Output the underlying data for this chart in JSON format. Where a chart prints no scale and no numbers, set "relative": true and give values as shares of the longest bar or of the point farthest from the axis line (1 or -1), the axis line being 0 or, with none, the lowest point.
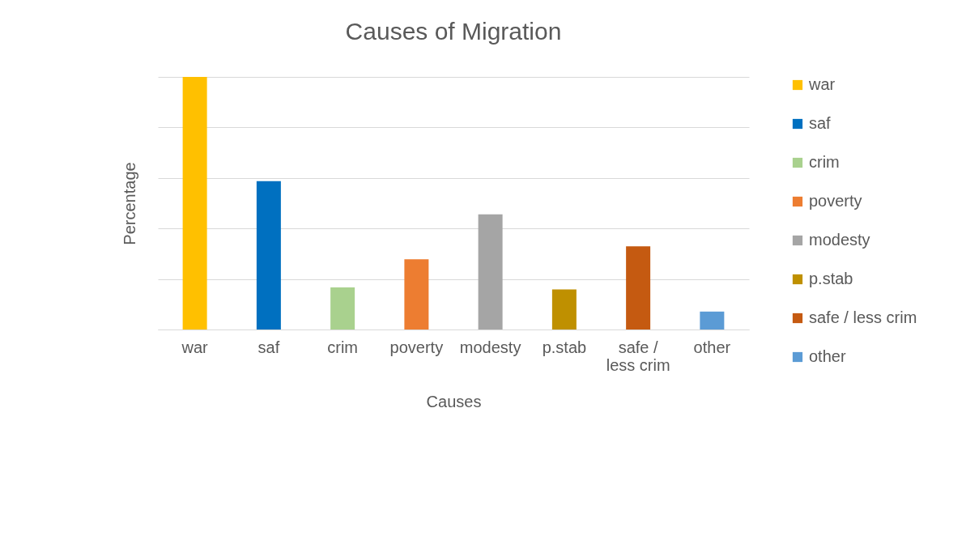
{
  "chart_data": {
    "type": "bar",
    "title": "Causes of Migration",
    "xlabel": "Causes",
    "ylabel": "Percentage",
    "relative": true,
    "grid": "y",
    "legend": "right",
    "categories": [
      "war",
      "saf",
      "crim",
      "poverty",
      "modesty",
      "p.stab",
      "safe / less crim",
      "other"
    ],
    "series": [
      {
        "name": "war",
        "color": "#ffc000",
        "values": [
          1,
          null,
          null,
          null,
          null,
          null,
          null,
          null
        ]
      },
      {
        "name": "saf",
        "color": "#0070c0",
        "values": [
          null,
          0.587,
          null,
          null,
          null,
          null,
          null,
          null
        ]
      },
      {
        "name": "crim",
        "color": "#a9d18e",
        "values": [
          null,
          null,
          0.167,
          null,
          null,
          null,
          null,
          null
        ]
      },
      {
        "name": "poverty",
        "color": "#ed7d31",
        "values": [
          null,
          null,
          null,
          0.278,
          null,
          null,
          null,
          null
        ]
      },
      {
        "name": "modesty",
        "color": "#a5a5a5",
        "values": [
          null,
          null,
          null,
          null,
          0.456,
          null,
          null,
          null
        ]
      },
      {
        "name": "p.stab",
        "color": "#bf9000",
        "values": [
          null,
          null,
          null,
          null,
          null,
          0.159,
          null,
          null
        ]
      },
      {
        "name": "safe / less crim",
        "color": "#c55a11",
        "values": [
          null,
          null,
          null,
          null,
          null,
          null,
          0.329,
          null
        ]
      },
      {
        "name": "other",
        "color": "#5b9bd5",
        "values": [
          null,
          null,
          null,
          null,
          null,
          null,
          null,
          0.071
        ]
      }
    ]
  }
}
